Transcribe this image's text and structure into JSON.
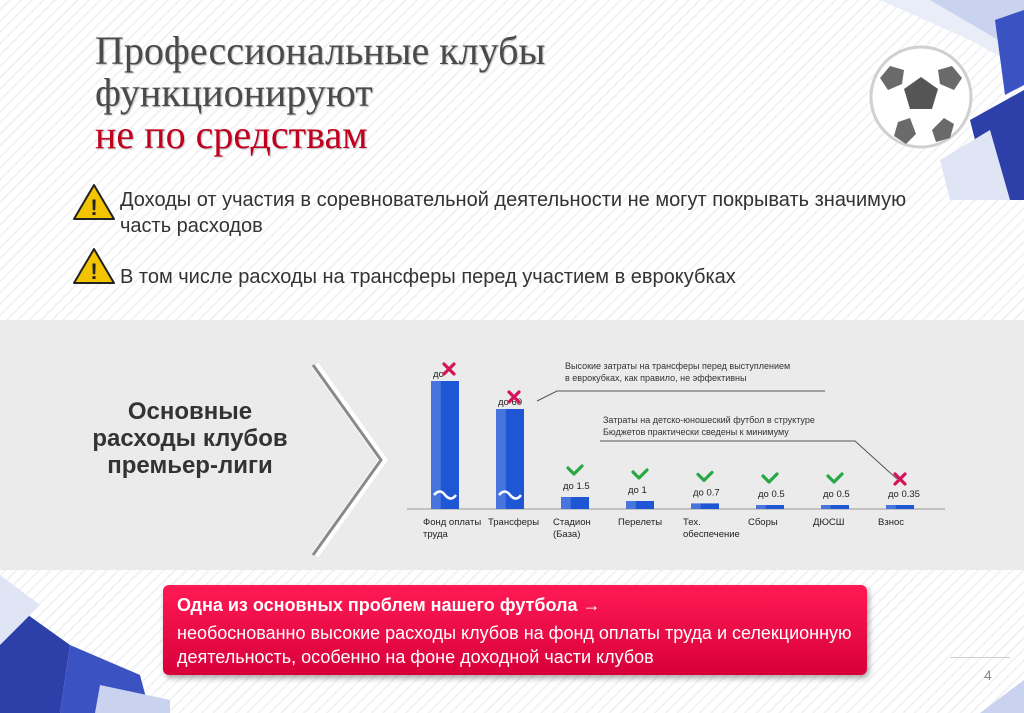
{
  "title": {
    "line1": "Профессиональные клубы",
    "line2": "функционируют",
    "line3": "не по средствам"
  },
  "bullets": [
    {
      "text": "Доходы от участия в соревновательной деятельности не могут покрывать значимую часть расходов",
      "icon": "warning-icon"
    },
    {
      "text": "В том числе расходы на трансферы перед участием в еврокубках",
      "icon": "warning-icon"
    }
  ],
  "section_label": "Основные расходы клубов премьер-лиги",
  "chart_data": {
    "type": "bar",
    "categories": [
      "Фонд оплаты труда",
      "Трансферы",
      "Стадион (База)",
      "Перелеты",
      "Тех. обеспечение",
      "Сборы",
      "ДЮСШ",
      "Взнос"
    ],
    "category_lines": [
      [
        "Фонд  оплаты",
        "труда"
      ],
      [
        "Трансферы"
      ],
      [
        "Стадион",
        "(База)"
      ],
      [
        "Перелеты"
      ],
      [
        "Тех.",
        "обеспечение"
      ],
      [
        "Сборы"
      ],
      [
        "ДЮСШ"
      ],
      [
        "Взнос"
      ]
    ],
    "values": [
      80,
      60,
      1.5,
      1,
      0.7,
      0.5,
      0.5,
      0.35
    ],
    "value_labels": [
      "до",
      "до 60",
      "до 1.5",
      "до 1",
      "до 0.7",
      "до 0.5",
      "до 0.5",
      "до 0.35"
    ],
    "marks": [
      "cross",
      "cross",
      "check",
      "check",
      "check",
      "check",
      "check",
      "cross"
    ],
    "broken_axis": [
      true,
      true,
      false,
      false,
      false,
      false,
      false,
      false
    ],
    "annotations": [
      "Высокие затраты на трансферы перед выступлением в еврокубках, как правило, не эффективны",
      "Затраты на детско-юношеский футбол в структуре Бюджетов практически сведены к минимуму"
    ],
    "colors": {
      "bar": "#1f56d6",
      "cross": "#d4145a",
      "check": "#27a844"
    }
  },
  "callout": {
    "headline": "Одна из основных проблем нашего футбола →",
    "body": "необоснованно высокие расходы клубов на фонд оплаты труда и селекционную деятельность, особенно на фоне доходной части клубов"
  },
  "page_number": "4",
  "colors": {
    "accent": "#c1001f",
    "callout": "#e8003f",
    "brand_blue": "#1f3fb0"
  }
}
